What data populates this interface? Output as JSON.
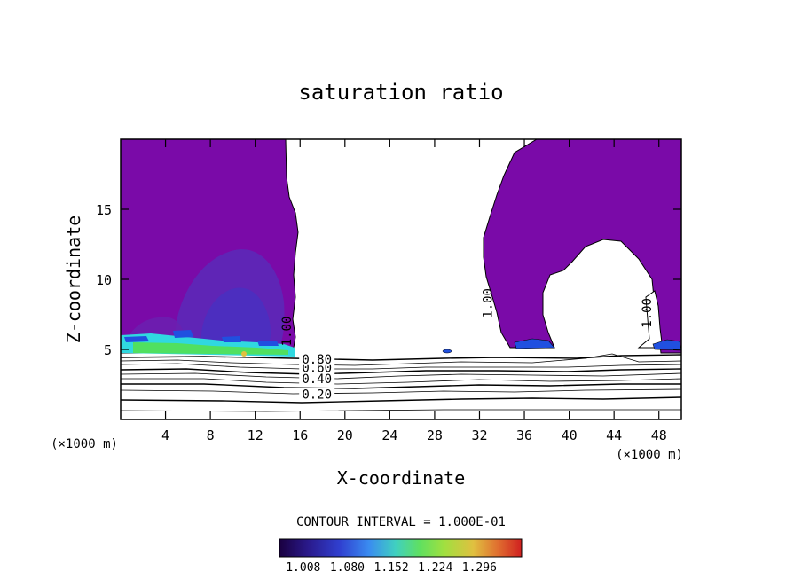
{
  "chart_data": {
    "type": "contour",
    "title": "saturation ratio",
    "xlabel": "X-coordinate",
    "ylabel": "Z-coordinate",
    "x_unit": "(×1000 m)",
    "xlim": [
      0,
      50
    ],
    "ylim": [
      0,
      20
    ],
    "x_ticks": [
      "4",
      "8",
      "12",
      "16",
      "20",
      "24",
      "28",
      "32",
      "36",
      "40",
      "44",
      "48"
    ],
    "y_ticks": [
      "5",
      "10",
      "15"
    ],
    "contour_labels": [
      {
        "text": "0.20",
        "x": 17.5,
        "z": 1.5
      },
      {
        "text": "0.40",
        "x": 17.5,
        "z": 2.6
      },
      {
        "text": "0.60",
        "x": 17.5,
        "z": 3.4
      },
      {
        "text": "0.80",
        "x": 17.5,
        "z": 4.0
      },
      {
        "text": "1.00",
        "x": 15.2,
        "z": 6.3
      },
      {
        "text": "1.00",
        "x": 33.1,
        "z": 8.3
      },
      {
        "text": "1.00",
        "x": 47.3,
        "z": 7.6
      }
    ],
    "contour_interval_text": "CONTOUR INTERVAL = 1.000E-01",
    "colorbar": {
      "ticks": [
        "1.008",
        "1.080",
        "1.152",
        "1.224",
        "1.296"
      ],
      "colors": [
        "#1a0040",
        "#2a1a8c",
        "#3040d0",
        "#3a8cf0",
        "#40d0c0",
        "#60e060",
        "#a0e040",
        "#e0c040",
        "#e07030",
        "#d02020"
      ]
    },
    "colors": {
      "supersaturated": "#7a0aa8",
      "deep": "#5a2ab8",
      "deeper": "#4a30c0",
      "cyan": "#30d8e0",
      "green": "#50e060",
      "blue": "#2050e0"
    }
  }
}
